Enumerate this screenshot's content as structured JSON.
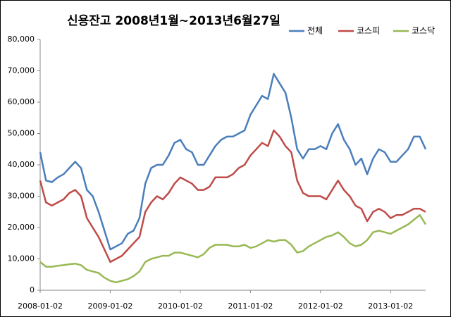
{
  "chart_data": {
    "type": "line",
    "title": "신용잔고  2008년1월~2013년6월27일",
    "categories": [
      "2008-01-02",
      null,
      null,
      null,
      null,
      null,
      null,
      null,
      null,
      null,
      null,
      null,
      "2009-01-02",
      null,
      null,
      null,
      null,
      null,
      null,
      null,
      null,
      null,
      null,
      null,
      "2010-01-02",
      null,
      null,
      null,
      null,
      null,
      null,
      null,
      null,
      null,
      null,
      null,
      "2011-01-02",
      null,
      null,
      null,
      null,
      null,
      null,
      null,
      null,
      null,
      null,
      null,
      "2012-01-02",
      null,
      null,
      null,
      null,
      null,
      null,
      null,
      null,
      null,
      null,
      null,
      "2013-01-02",
      null,
      null,
      null,
      null,
      null,
      null
    ],
    "series": [
      {
        "name": "전체",
        "color": "#4a7ebb",
        "values": [
          44000,
          35000,
          34500,
          36000,
          37000,
          39000,
          41000,
          39000,
          32000,
          30000,
          25000,
          19000,
          13000,
          14000,
          15000,
          18000,
          19000,
          23000,
          34000,
          39000,
          40000,
          40000,
          43000,
          47000,
          48000,
          45000,
          44000,
          40000,
          40000,
          43000,
          46000,
          48000,
          49000,
          49000,
          50000,
          51000,
          56000,
          59000,
          62000,
          61000,
          69000,
          66000,
          63000,
          55000,
          45000,
          42000,
          45000,
          45000,
          46000,
          45000,
          50000,
          53000,
          48000,
          45000,
          40000,
          42000,
          37000,
          42000,
          45000,
          44000,
          41000,
          41000,
          43000,
          45000,
          49000,
          49000,
          45000
        ]
      },
      {
        "name": "코스피",
        "color": "#be4b48",
        "values": [
          35000,
          28000,
          27000,
          28000,
          29000,
          31000,
          32000,
          30000,
          23000,
          20000,
          17000,
          13000,
          9000,
          10000,
          11000,
          13000,
          15000,
          17000,
          25000,
          28000,
          30000,
          29000,
          31000,
          34000,
          36000,
          35000,
          34000,
          32000,
          32000,
          33000,
          36000,
          36000,
          36000,
          37000,
          39000,
          40000,
          43000,
          45000,
          47000,
          46000,
          51000,
          49000,
          46000,
          44000,
          35000,
          31000,
          30000,
          30000,
          30000,
          29000,
          32000,
          35000,
          32000,
          30000,
          27000,
          26000,
          22000,
          25000,
          26000,
          25000,
          23000,
          24000,
          24000,
          25000,
          26000,
          26000,
          25000
        ]
      },
      {
        "name": "코스닥",
        "color": "#98b954",
        "values": [
          9000,
          7500,
          7500,
          7800,
          8000,
          8300,
          8500,
          8000,
          6500,
          6000,
          5500,
          4000,
          3000,
          2500,
          3000,
          3500,
          4500,
          6000,
          9000,
          10000,
          10500,
          11000,
          11000,
          12000,
          12000,
          11500,
          11000,
          10500,
          11500,
          13500,
          14500,
          14500,
          14500,
          14000,
          14000,
          14500,
          13500,
          14000,
          15000,
          16000,
          15500,
          16000,
          16000,
          14500,
          12000,
          12500,
          14000,
          15000,
          16000,
          17000,
          17500,
          18500,
          17000,
          15000,
          14000,
          14500,
          16000,
          18500,
          19000,
          18500,
          18000,
          19000,
          20000,
          21000,
          22500,
          24000,
          21000
        ]
      }
    ],
    "ylim": [
      0,
      80000
    ],
    "yticks": [
      0,
      {
        "value": 10000,
        "label": "10,000"
      },
      {
        "value": 20000,
        "label": "20,000"
      },
      {
        "value": 30000,
        "label": "30,000"
      },
      {
        "value": 40000,
        "label": "40,000"
      },
      {
        "value": 50000,
        "label": "50,000"
      },
      {
        "value": 60000,
        "label": "60,000"
      },
      {
        "value": 70000,
        "label": "70,000"
      },
      {
        "value": 80000,
        "label": "80,000"
      }
    ],
    "grid": false,
    "legend": "top-right"
  }
}
